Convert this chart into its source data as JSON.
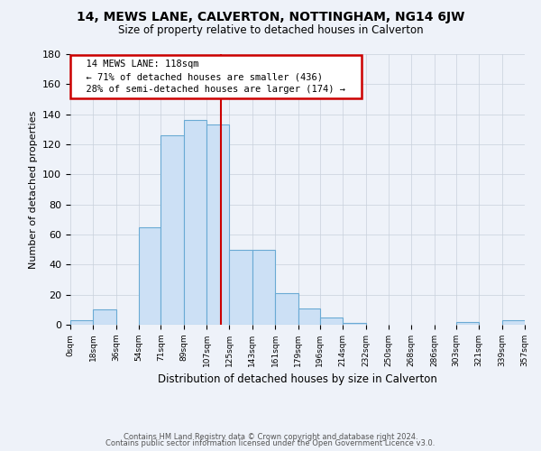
{
  "title": "14, MEWS LANE, CALVERTON, NOTTINGHAM, NG14 6JW",
  "subtitle": "Size of property relative to detached houses in Calverton",
  "xlabel": "Distribution of detached houses by size in Calverton",
  "ylabel": "Number of detached properties",
  "bar_color": "#cce0f5",
  "bar_edge_color": "#6aaad4",
  "background_color": "#eef2f9",
  "grid_color": "#c8d0dc",
  "vline_x": 118,
  "vline_color": "#cc0000",
  "annotation_title": "14 MEWS LANE: 118sqm",
  "annotation_line1": "← 71% of detached houses are smaller (436)",
  "annotation_line2": "28% of semi-detached houses are larger (174) →",
  "annotation_box_color": "white",
  "annotation_box_edge": "#cc0000",
  "bin_edges": [
    0,
    18,
    36,
    54,
    71,
    89,
    107,
    125,
    143,
    161,
    179,
    196,
    214,
    232,
    250,
    268,
    286,
    303,
    321,
    339,
    357
  ],
  "bar_heights": [
    3,
    10,
    0,
    65,
    126,
    136,
    133,
    50,
    50,
    21,
    11,
    5,
    1,
    0,
    0,
    0,
    0,
    2,
    0,
    3
  ],
  "ylim": [
    0,
    180
  ],
  "xlim": [
    0,
    357
  ],
  "ytick_step": 20,
  "footer_line1": "Contains HM Land Registry data © Crown copyright and database right 2024.",
  "footer_line2": "Contains public sector information licensed under the Open Government Licence v3.0."
}
